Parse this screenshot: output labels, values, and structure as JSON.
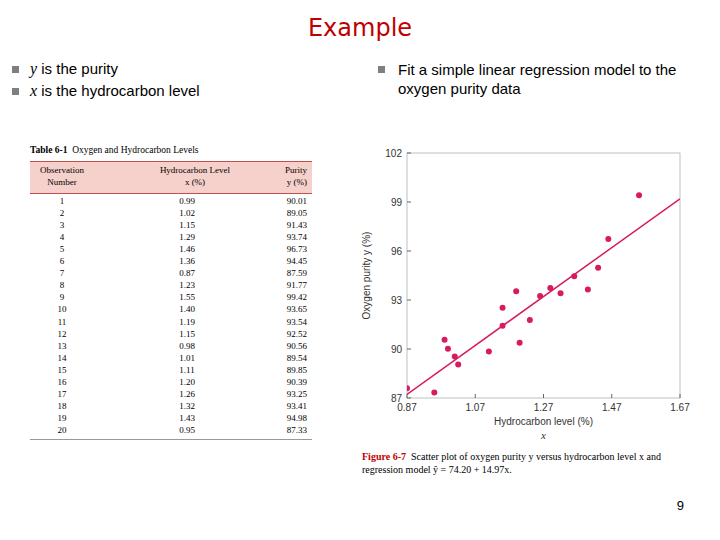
{
  "slide": {
    "title": "Example",
    "bullets_left": [
      {
        "var": "y",
        "text": "is the purity"
      },
      {
        "var": "x",
        "text": "is the hydrocarbon level"
      }
    ],
    "bullets_right": [
      "Fit a simple linear regression model to the oxygen purity data"
    ],
    "table": {
      "label": "Table 6-1",
      "title": "Oxygen and Hydrocarbon Levels",
      "header": [
        [
          "Observation",
          "Number"
        ],
        [
          "Hydrocarbon Level",
          "x (%)"
        ],
        [
          "Purity",
          "y (%)"
        ]
      ],
      "rows": [
        [
          "1",
          "0.99",
          "90.01"
        ],
        [
          "2",
          "1.02",
          "89.05"
        ],
        [
          "3",
          "1.15",
          "91.43"
        ],
        [
          "4",
          "1.29",
          "93.74"
        ],
        [
          "5",
          "1.46",
          "96.73"
        ],
        [
          "6",
          "1.36",
          "94.45"
        ],
        [
          "7",
          "0.87",
          "87.59"
        ],
        [
          "8",
          "1.23",
          "91.77"
        ],
        [
          "9",
          "1.55",
          "99.42"
        ],
        [
          "10",
          "1.40",
          "93.65"
        ],
        [
          "11",
          "1.19",
          "93.54"
        ],
        [
          "12",
          "1.15",
          "92.52"
        ],
        [
          "13",
          "0.98",
          "90.56"
        ],
        [
          "14",
          "1.01",
          "89.54"
        ],
        [
          "15",
          "1.11",
          "89.85"
        ],
        [
          "16",
          "1.20",
          "90.39"
        ],
        [
          "17",
          "1.26",
          "93.25"
        ],
        [
          "18",
          "1.32",
          "93.41"
        ],
        [
          "19",
          "1.43",
          "94.98"
        ],
        [
          "20",
          "0.95",
          "87.33"
        ]
      ]
    },
    "caption": {
      "label": "Figure 6-7",
      "text": "Scatter plot of oxygen purity y versus hydrocarbon level x and regression model ŷ = 74.20 + 14.97x."
    },
    "page": "9"
  },
  "chart_data": {
    "type": "scatter",
    "xlabel": "Hydrocarbon level (%)",
    "ylabel": "Oxygen purity y (%)",
    "annotations": [
      "x"
    ],
    "x": [
      0.99,
      1.02,
      1.15,
      1.29,
      1.46,
      1.36,
      0.87,
      1.23,
      1.55,
      1.4,
      1.19,
      1.15,
      0.98,
      1.01,
      1.11,
      1.2,
      1.26,
      1.32,
      1.43,
      0.95
    ],
    "values": [
      90.01,
      89.05,
      91.43,
      93.74,
      96.73,
      94.45,
      87.59,
      91.77,
      99.42,
      93.65,
      93.54,
      92.52,
      90.56,
      89.54,
      89.85,
      90.39,
      93.25,
      93.41,
      94.98,
      87.33
    ],
    "color": "#d81b60",
    "marker": "circle",
    "regression": {
      "intercept": 74.2,
      "slope": 14.97
    },
    "xlim": [
      0.87,
      1.67
    ],
    "ylim": [
      87,
      102
    ],
    "xticks": [
      0.87,
      1.07,
      1.27,
      1.47,
      1.67
    ],
    "yticks": [
      87,
      90,
      93,
      96,
      99,
      102
    ],
    "grid": false
  }
}
